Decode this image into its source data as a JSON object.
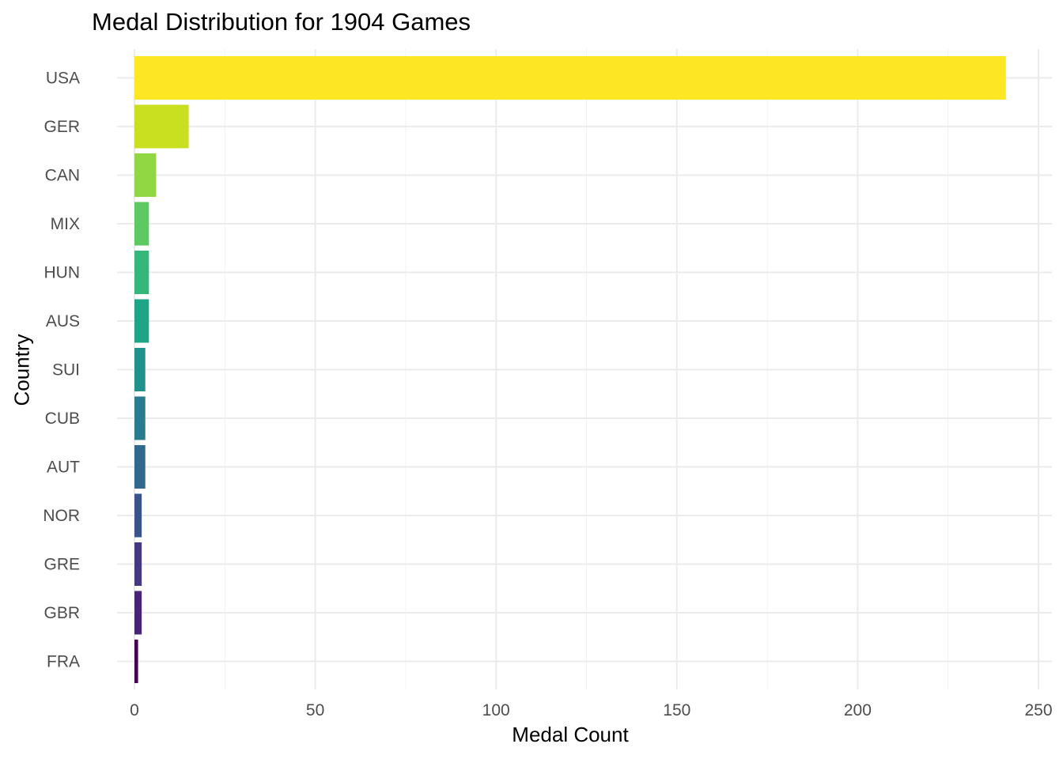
{
  "chart_data": {
    "type": "bar",
    "orientation": "horizontal",
    "title": "Medal Distribution for 1904 Games",
    "xlabel": "Medal Count",
    "ylabel": "Country",
    "xlim": [
      0,
      250
    ],
    "x_ticks": [
      0,
      50,
      100,
      150,
      200,
      250
    ],
    "grid": true,
    "legend": "none",
    "categories": [
      "USA",
      "GER",
      "CAN",
      "MIX",
      "HUN",
      "AUS",
      "SUI",
      "CUB",
      "AUT",
      "NOR",
      "GRE",
      "GBR",
      "FRA"
    ],
    "values": [
      241,
      15,
      6,
      4,
      4,
      4,
      3,
      3,
      3,
      2,
      2,
      2,
      1
    ],
    "colors": [
      "#FDE725",
      "#C8E020",
      "#90D743",
      "#5EC962",
      "#35B779",
      "#20A486",
      "#21918C",
      "#287C8E",
      "#31688E",
      "#3B528B",
      "#443A83",
      "#482475",
      "#440154"
    ]
  }
}
